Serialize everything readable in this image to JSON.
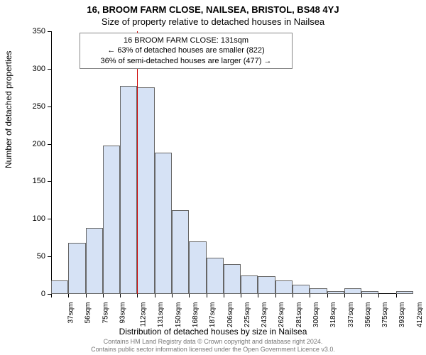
{
  "title_line1": "16, BROOM FARM CLOSE, NAILSEA, BRISTOL, BS48 4YJ",
  "title_line2": "Size of property relative to detached houses in Nailsea",
  "annotation": {
    "line1": "16 BROOM FARM CLOSE: 131sqm",
    "line2": "← 63% of detached houses are smaller (822)",
    "line3": "36% of semi-detached houses are larger (477) →"
  },
  "ylabel": "Number of detached properties",
  "xlabel": "Distribution of detached houses by size in Nailsea",
  "footer_line1": "Contains HM Land Registry data © Crown copyright and database right 2024.",
  "footer_line2": "Contains public sector information licensed under the Open Government Licence v3.0.",
  "chart": {
    "type": "histogram",
    "ylim": [
      0,
      350
    ],
    "ytick_step": 50,
    "bar_fill": "#d6e2f5",
    "bar_border": "#666666",
    "reference_line_color": "#cc0000",
    "reference_x_index": 5,
    "background_color": "#ffffff",
    "x_labels": [
      "37sqm",
      "56sqm",
      "75sqm",
      "93sqm",
      "112sqm",
      "131sqm",
      "150sqm",
      "168sqm",
      "187sqm",
      "206sqm",
      "225sqm",
      "243sqm",
      "262sqm",
      "281sqm",
      "300sqm",
      "318sqm",
      "337sqm",
      "356sqm",
      "375sqm",
      "393sqm",
      "412sqm"
    ],
    "values": [
      18,
      68,
      88,
      198,
      277,
      275,
      188,
      112,
      70,
      48,
      40,
      25,
      24,
      18,
      12,
      8,
      4,
      8,
      4,
      0,
      4
    ]
  }
}
